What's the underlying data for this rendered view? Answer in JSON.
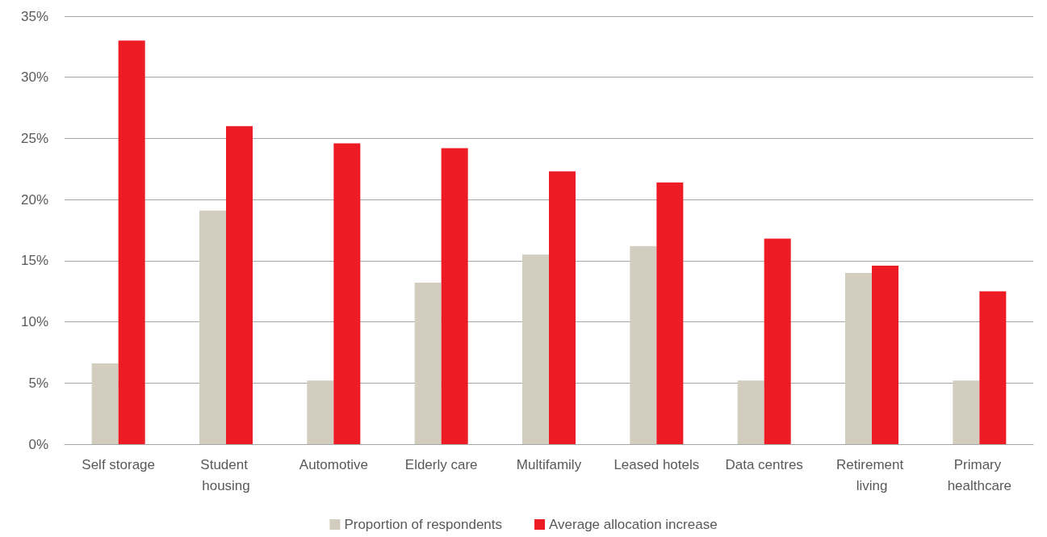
{
  "chart_data": {
    "type": "bar",
    "categories": [
      "Self storage",
      "Student housing",
      "Automotive",
      "Elderly care",
      "Multifamily",
      "Leased hotels",
      "Data centres",
      "Retirement living",
      "Primary healthcare"
    ],
    "series": [
      {
        "name": "Proportion of respondents",
        "color": "#d3cdbf",
        "values": [
          6.6,
          19.1,
          5.2,
          13.2,
          15.5,
          16.2,
          5.2,
          14.0,
          5.2
        ]
      },
      {
        "name": "Average allocation increase",
        "color": "#ed1c24",
        "values": [
          33.0,
          26.0,
          24.6,
          24.2,
          22.3,
          21.4,
          16.8,
          14.6,
          12.5
        ]
      }
    ],
    "ylim": [
      0,
      35
    ],
    "yticks": [
      {
        "value": 0,
        "label": "0%"
      },
      {
        "value": 5,
        "label": "5%"
      },
      {
        "value": 10,
        "label": "10%"
      },
      {
        "value": 15,
        "label": "15%"
      },
      {
        "value": 20,
        "label": "20%"
      },
      {
        "value": 25,
        "label": "25%"
      },
      {
        "value": 30,
        "label": "30%"
      },
      {
        "value": 35,
        "label": "35%"
      }
    ],
    "grid": "y",
    "legend": "bottom"
  }
}
